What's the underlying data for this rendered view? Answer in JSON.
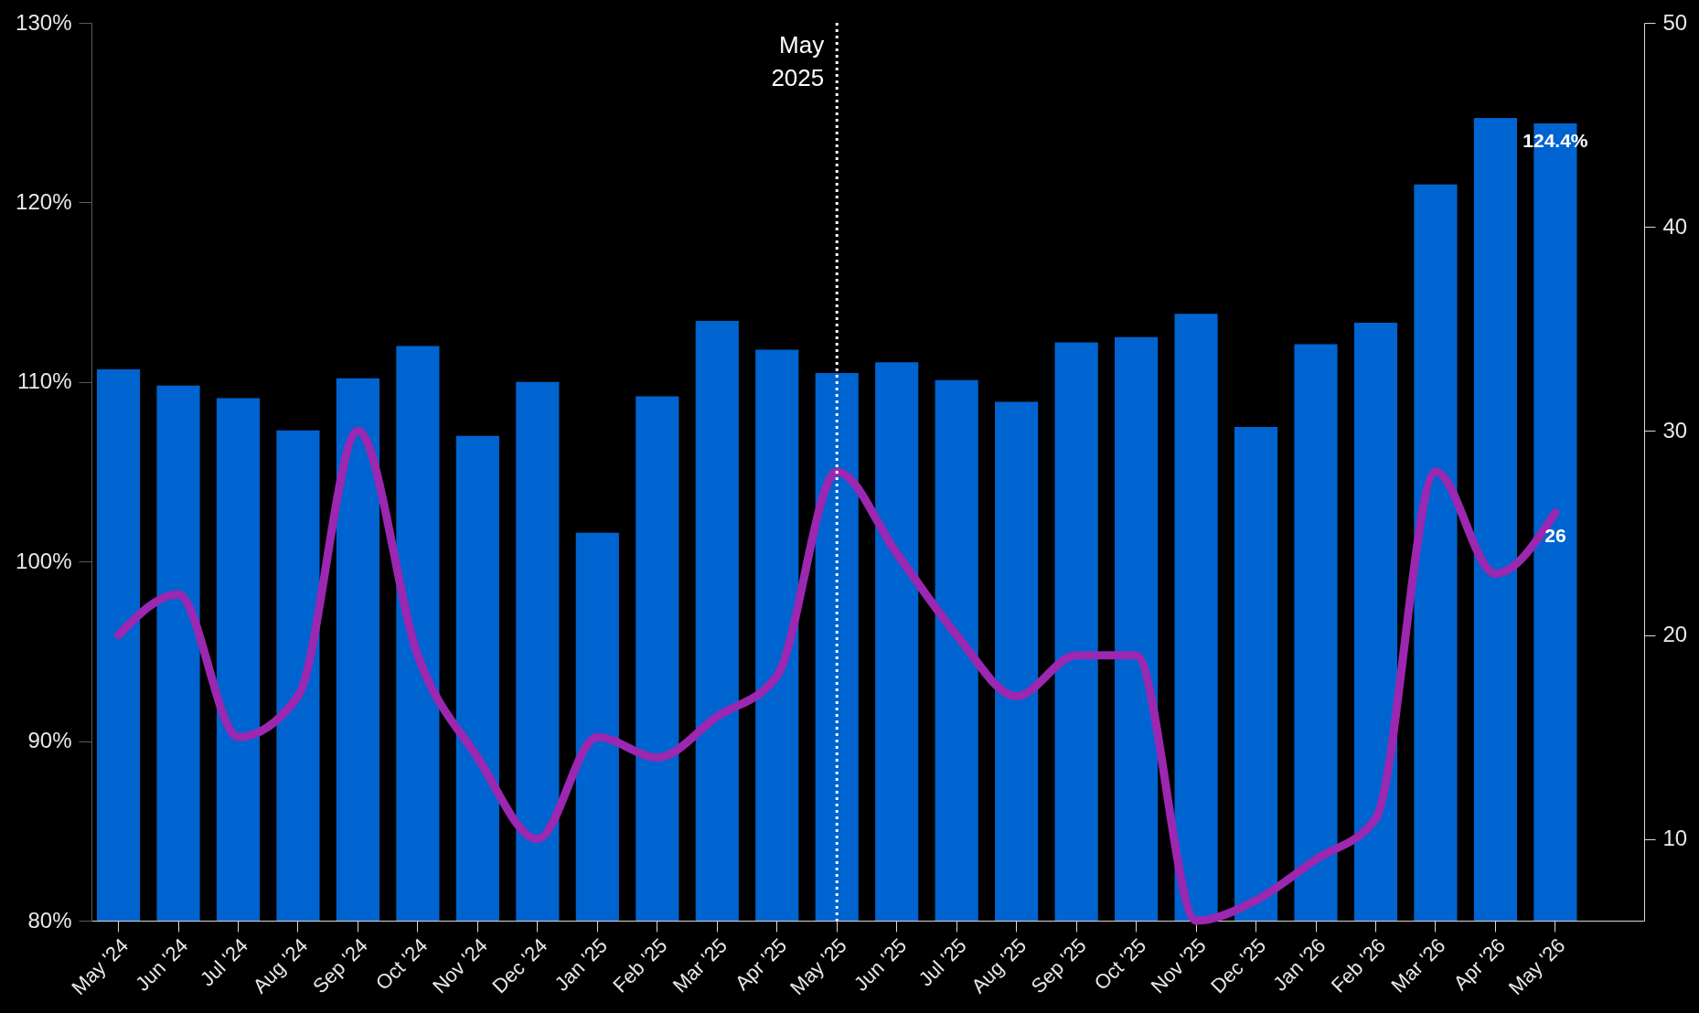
{
  "chart_data": {
    "type": "bar",
    "categories": [
      "May '24",
      "Jun '24",
      "Jul '24",
      "Aug '24",
      "Sep '24",
      "Oct '24",
      "Nov '24",
      "Dec '24",
      "Jan '25",
      "Feb '25",
      "Mar '25",
      "Apr '25",
      "May '25",
      "Jun '25",
      "Jul '25",
      "Aug '25",
      "Sep '25",
      "Oct '25",
      "Nov '25",
      "Dec '25",
      "Jan '26",
      "Feb '26",
      "Mar '26",
      "Apr '26",
      "May '26"
    ],
    "series": [
      {
        "color": "#0064d0",
        "values": [
          110.7,
          109.8,
          109.1,
          107.3,
          110.2,
          112.0,
          107.0,
          110.0,
          101.6,
          109.2,
          113.4,
          111.8,
          110.5,
          111.1,
          110.1,
          108.9,
          112.2,
          112.5,
          113.8,
          107.5,
          112.1,
          113.3,
          121.0,
          124.7,
          124.4
        ],
        "value_labels": [
          null,
          null,
          null,
          null,
          null,
          null,
          null,
          null,
          null,
          null,
          null,
          null,
          null,
          null,
          null,
          null,
          null,
          null,
          null,
          null,
          null,
          null,
          null,
          null,
          "124.4%"
        ]
      },
      {
        "type": "line",
        "axis": "y2",
        "color": "#9c27b0",
        "values": [
          20,
          22,
          15,
          17,
          30,
          19,
          14,
          10,
          15,
          14,
          16,
          18,
          28,
          24,
          20,
          17,
          19,
          19,
          6,
          7,
          9,
          11,
          28,
          23,
          26
        ],
        "value_labels": [
          null,
          null,
          null,
          null,
          null,
          null,
          null,
          null,
          null,
          null,
          null,
          null,
          null,
          null,
          null,
          null,
          null,
          null,
          null,
          null,
          null,
          null,
          null,
          null,
          "26"
        ]
      }
    ],
    "ylim": [
      80,
      130
    ],
    "yticks": [
      {
        "value": 80,
        "label": "80%"
      },
      {
        "value": 90,
        "label": "90%"
      },
      {
        "value": 100,
        "label": "100%"
      },
      {
        "value": 110,
        "label": "110%"
      },
      {
        "value": 120,
        "label": "120%"
      },
      {
        "value": 130,
        "label": "130%"
      }
    ],
    "y2lim": [
      6,
      50
    ],
    "y2ticks": [
      10,
      20,
      30,
      40,
      50
    ],
    "ref_lines": [
      {
        "axis": "x",
        "value": "May '25",
        "label": "May 2025",
        "color": "#ffffff",
        "line_style": "dotted"
      }
    ],
    "grid": false,
    "marker": "none",
    "line_style": "solid"
  }
}
